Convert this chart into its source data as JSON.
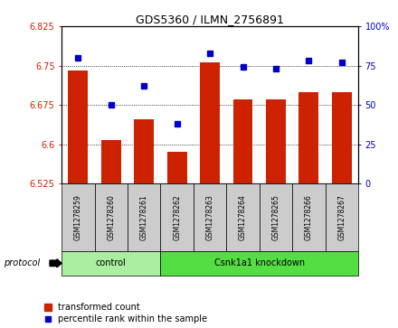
{
  "title": "GDS5360 / ILMN_2756891",
  "samples": [
    "GSM1278259",
    "GSM1278260",
    "GSM1278261",
    "GSM1278262",
    "GSM1278263",
    "GSM1278264",
    "GSM1278265",
    "GSM1278266",
    "GSM1278267"
  ],
  "bar_values": [
    6.74,
    6.608,
    6.648,
    6.585,
    6.756,
    6.686,
    6.686,
    6.7,
    6.7
  ],
  "percentile_values": [
    80,
    50,
    62,
    38,
    83,
    74,
    73,
    78,
    77
  ],
  "bar_baseline": 6.525,
  "ylim_left": [
    6.525,
    6.825
  ],
  "ylim_right": [
    0,
    100
  ],
  "yticks_left": [
    6.525,
    6.6,
    6.675,
    6.75,
    6.825
  ],
  "ytick_labels_left": [
    "6.525",
    "6.6",
    "6.675",
    "6.75",
    "6.825"
  ],
  "yticks_right": [
    0,
    25,
    50,
    75,
    100
  ],
  "ytick_labels_right": [
    "0",
    "25",
    "50",
    "75",
    "100%"
  ],
  "bar_color": "#CC2200",
  "dot_color": "#0000CC",
  "protocol_groups": [
    {
      "label": "control",
      "start": 0,
      "end": 3,
      "color": "#AAEEA0"
    },
    {
      "label": "Csnk1a1 knockdown",
      "start": 3,
      "end": 9,
      "color": "#55DD44"
    }
  ],
  "protocol_label": "protocol",
  "legend_bar_label": "transformed count",
  "legend_dot_label": "percentile rank within the sample",
  "background_color": "#FFFFFF",
  "plot_bg_color": "#FFFFFF",
  "tick_label_color_left": "#CC2200",
  "tick_label_color_right": "#0000CC",
  "bar_width": 0.6,
  "sample_bg_color": "#CCCCCC"
}
